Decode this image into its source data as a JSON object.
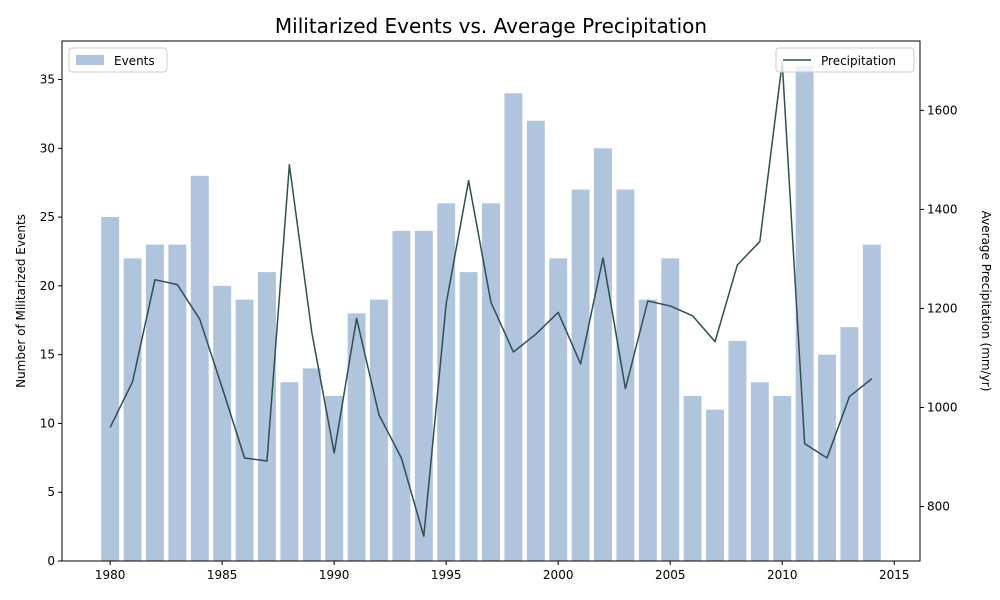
{
  "chart_data": {
    "type": "bar+line",
    "title": "Militarized Events vs. Average Precipitation",
    "xlabel": "",
    "ylabel_left": "Number of Militarized Events",
    "ylabel_right": "Average Precipitation (mm/yr)",
    "x": [
      1980,
      1981,
      1982,
      1983,
      1984,
      1985,
      1986,
      1987,
      1988,
      1989,
      1990,
      1991,
      1992,
      1993,
      1994,
      1995,
      1996,
      1997,
      1998,
      1999,
      2000,
      2001,
      2002,
      2003,
      2004,
      2005,
      2006,
      2007,
      2008,
      2009,
      2010,
      2011,
      2012,
      2013,
      2014
    ],
    "xlim": [
      1977.85,
      2016.15
    ],
    "xticks": [
      1980,
      1985,
      1990,
      1995,
      2000,
      2005,
      2010,
      2015
    ],
    "ylim_left": [
      0,
      37.8
    ],
    "yticks_left": [
      0,
      5,
      10,
      15,
      20,
      25,
      30,
      35
    ],
    "ylim_right": [
      690,
      1740
    ],
    "yticks_right": [
      800,
      1000,
      1200,
      1400,
      1600
    ],
    "grid": false,
    "series": [
      {
        "name": "Events",
        "type": "bar",
        "axis": "left",
        "color": "#b0c4de",
        "values": [
          25,
          22,
          23,
          23,
          28,
          20,
          19,
          21,
          13,
          14,
          12,
          18,
          19,
          24,
          24,
          26,
          21,
          26,
          34,
          32,
          22,
          27,
          30,
          27,
          19,
          22,
          12,
          11,
          16,
          13,
          12,
          36,
          15,
          17,
          23
        ]
      },
      {
        "name": "Precipitation",
        "type": "line",
        "axis": "right",
        "color": "#2f4f4f",
        "values": [
          960,
          1052,
          1258,
          1248,
          1178,
          1040,
          898,
          892,
          1490,
          1152,
          908,
          1180,
          985,
          898,
          740,
          1210,
          1458,
          1212,
          1112,
          1148,
          1192,
          1088,
          1302,
          1038,
          1215,
          1205,
          1185,
          1133,
          1288,
          1335,
          1697,
          927,
          898,
          1022,
          1058
        ]
      }
    ],
    "legend": [
      {
        "label": "Events",
        "placement": "upper-left"
      },
      {
        "label": "Precipitation",
        "placement": "upper-right"
      }
    ]
  }
}
